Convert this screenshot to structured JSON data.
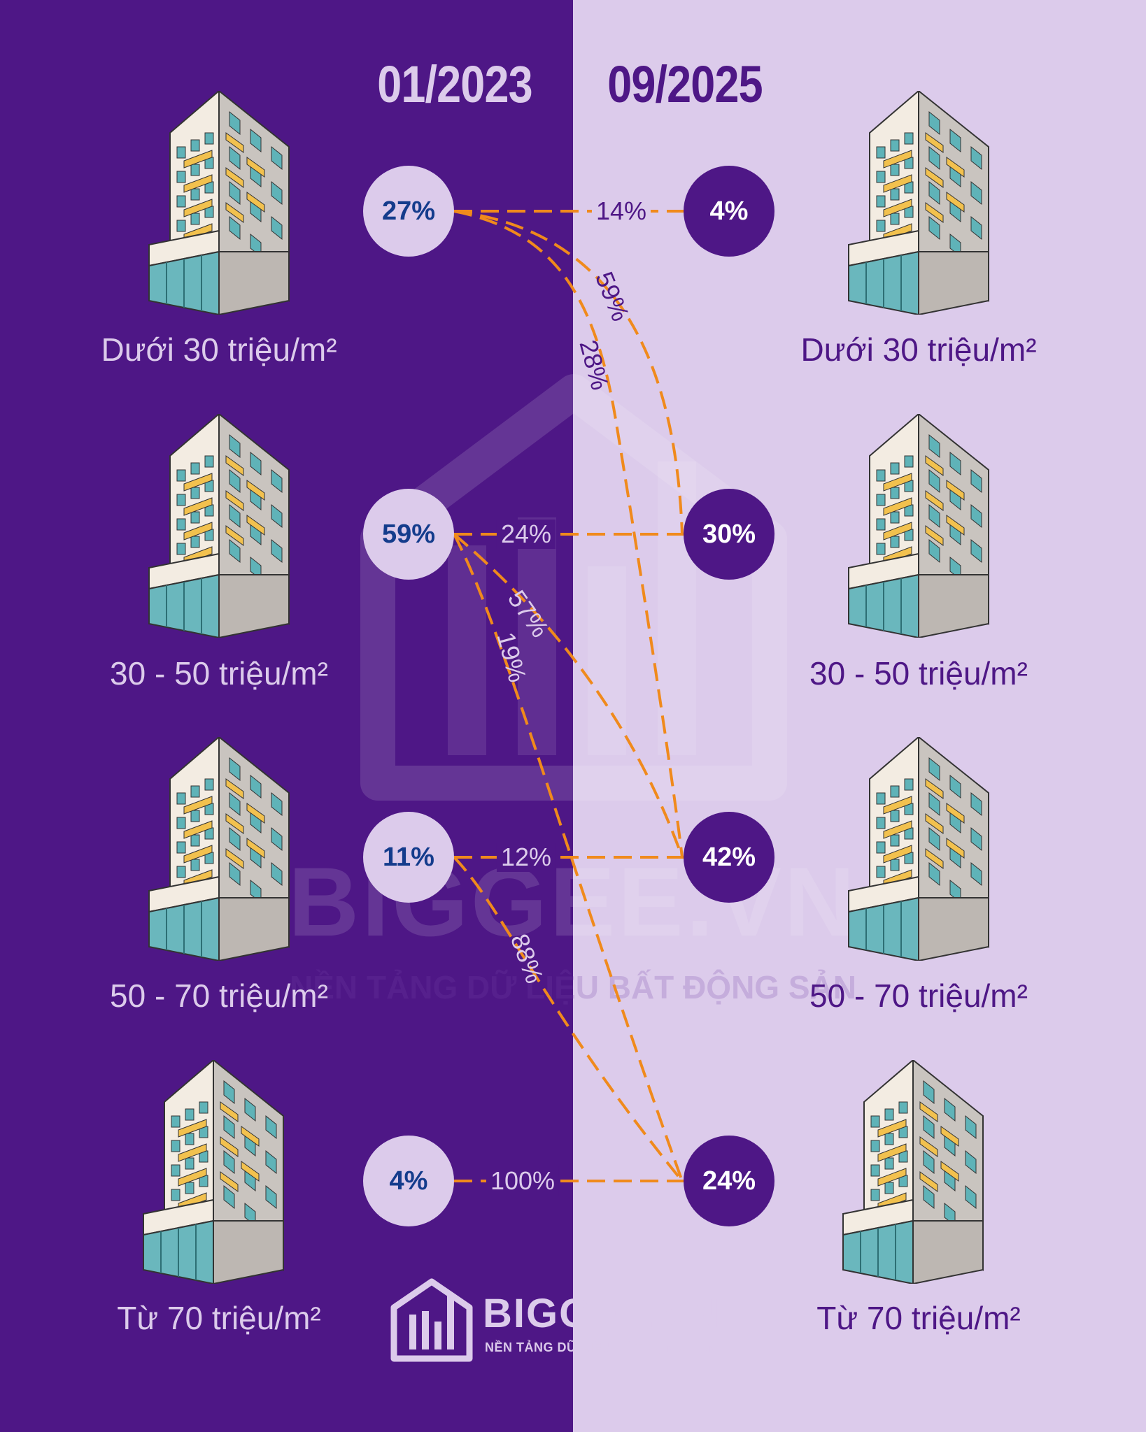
{
  "header": {
    "left_date": "01/2023",
    "right_date": "09/2025"
  },
  "segments": [
    {
      "label": "Dưới 30 triệu/m²",
      "share_2023": "27%",
      "share_2025": "4%"
    },
    {
      "label": "30 - 50 triệu/m²",
      "share_2023": "59%",
      "share_2025": "30%"
    },
    {
      "label": "50 - 70 triệu/m²",
      "share_2023": "11%",
      "share_2025": "42%"
    },
    {
      "label": "Từ 70 triệu/m²",
      "share_2023": "4%",
      "share_2025": "24%"
    }
  ],
  "flows": [
    {
      "from": "Dưới 30 triệu/m²",
      "to": "Dưới 30 triệu/m²",
      "label": "14%"
    },
    {
      "from": "Dưới 30 triệu/m²",
      "to": "30 - 50 triệu/m²",
      "label": "59%"
    },
    {
      "from": "Dưới 30 triệu/m²",
      "to": "50 - 70 triệu/m²",
      "label": "28%"
    },
    {
      "from": "30 - 50 triệu/m²",
      "to": "30 - 50 triệu/m²",
      "label": "24%"
    },
    {
      "from": "30 - 50 triệu/m²",
      "to": "50 - 70 triệu/m²",
      "label": "57%"
    },
    {
      "from": "30 - 50 triệu/m²",
      "to": "Từ 70 triệu/m²",
      "label": "19%"
    },
    {
      "from": "50 - 70 triệu/m²",
      "to": "50 - 70 triệu/m²",
      "label": "12%"
    },
    {
      "from": "50 - 70 triệu/m²",
      "to": "Từ 70 triệu/m²",
      "label": "88%"
    },
    {
      "from": "Từ 70 triệu/m²",
      "to": "Từ 70 triệu/m²",
      "label": "100%"
    }
  ],
  "colors": {
    "dark": "#4e1786",
    "light": "#dccbeb",
    "flow": "#f08a1c",
    "left_value": "#143c8c"
  },
  "brand": {
    "name": "BIGGEE.VN",
    "tagline": "NỀN TẢNG DỮ LIỆU BẤT ĐỘNG SẢN"
  }
}
